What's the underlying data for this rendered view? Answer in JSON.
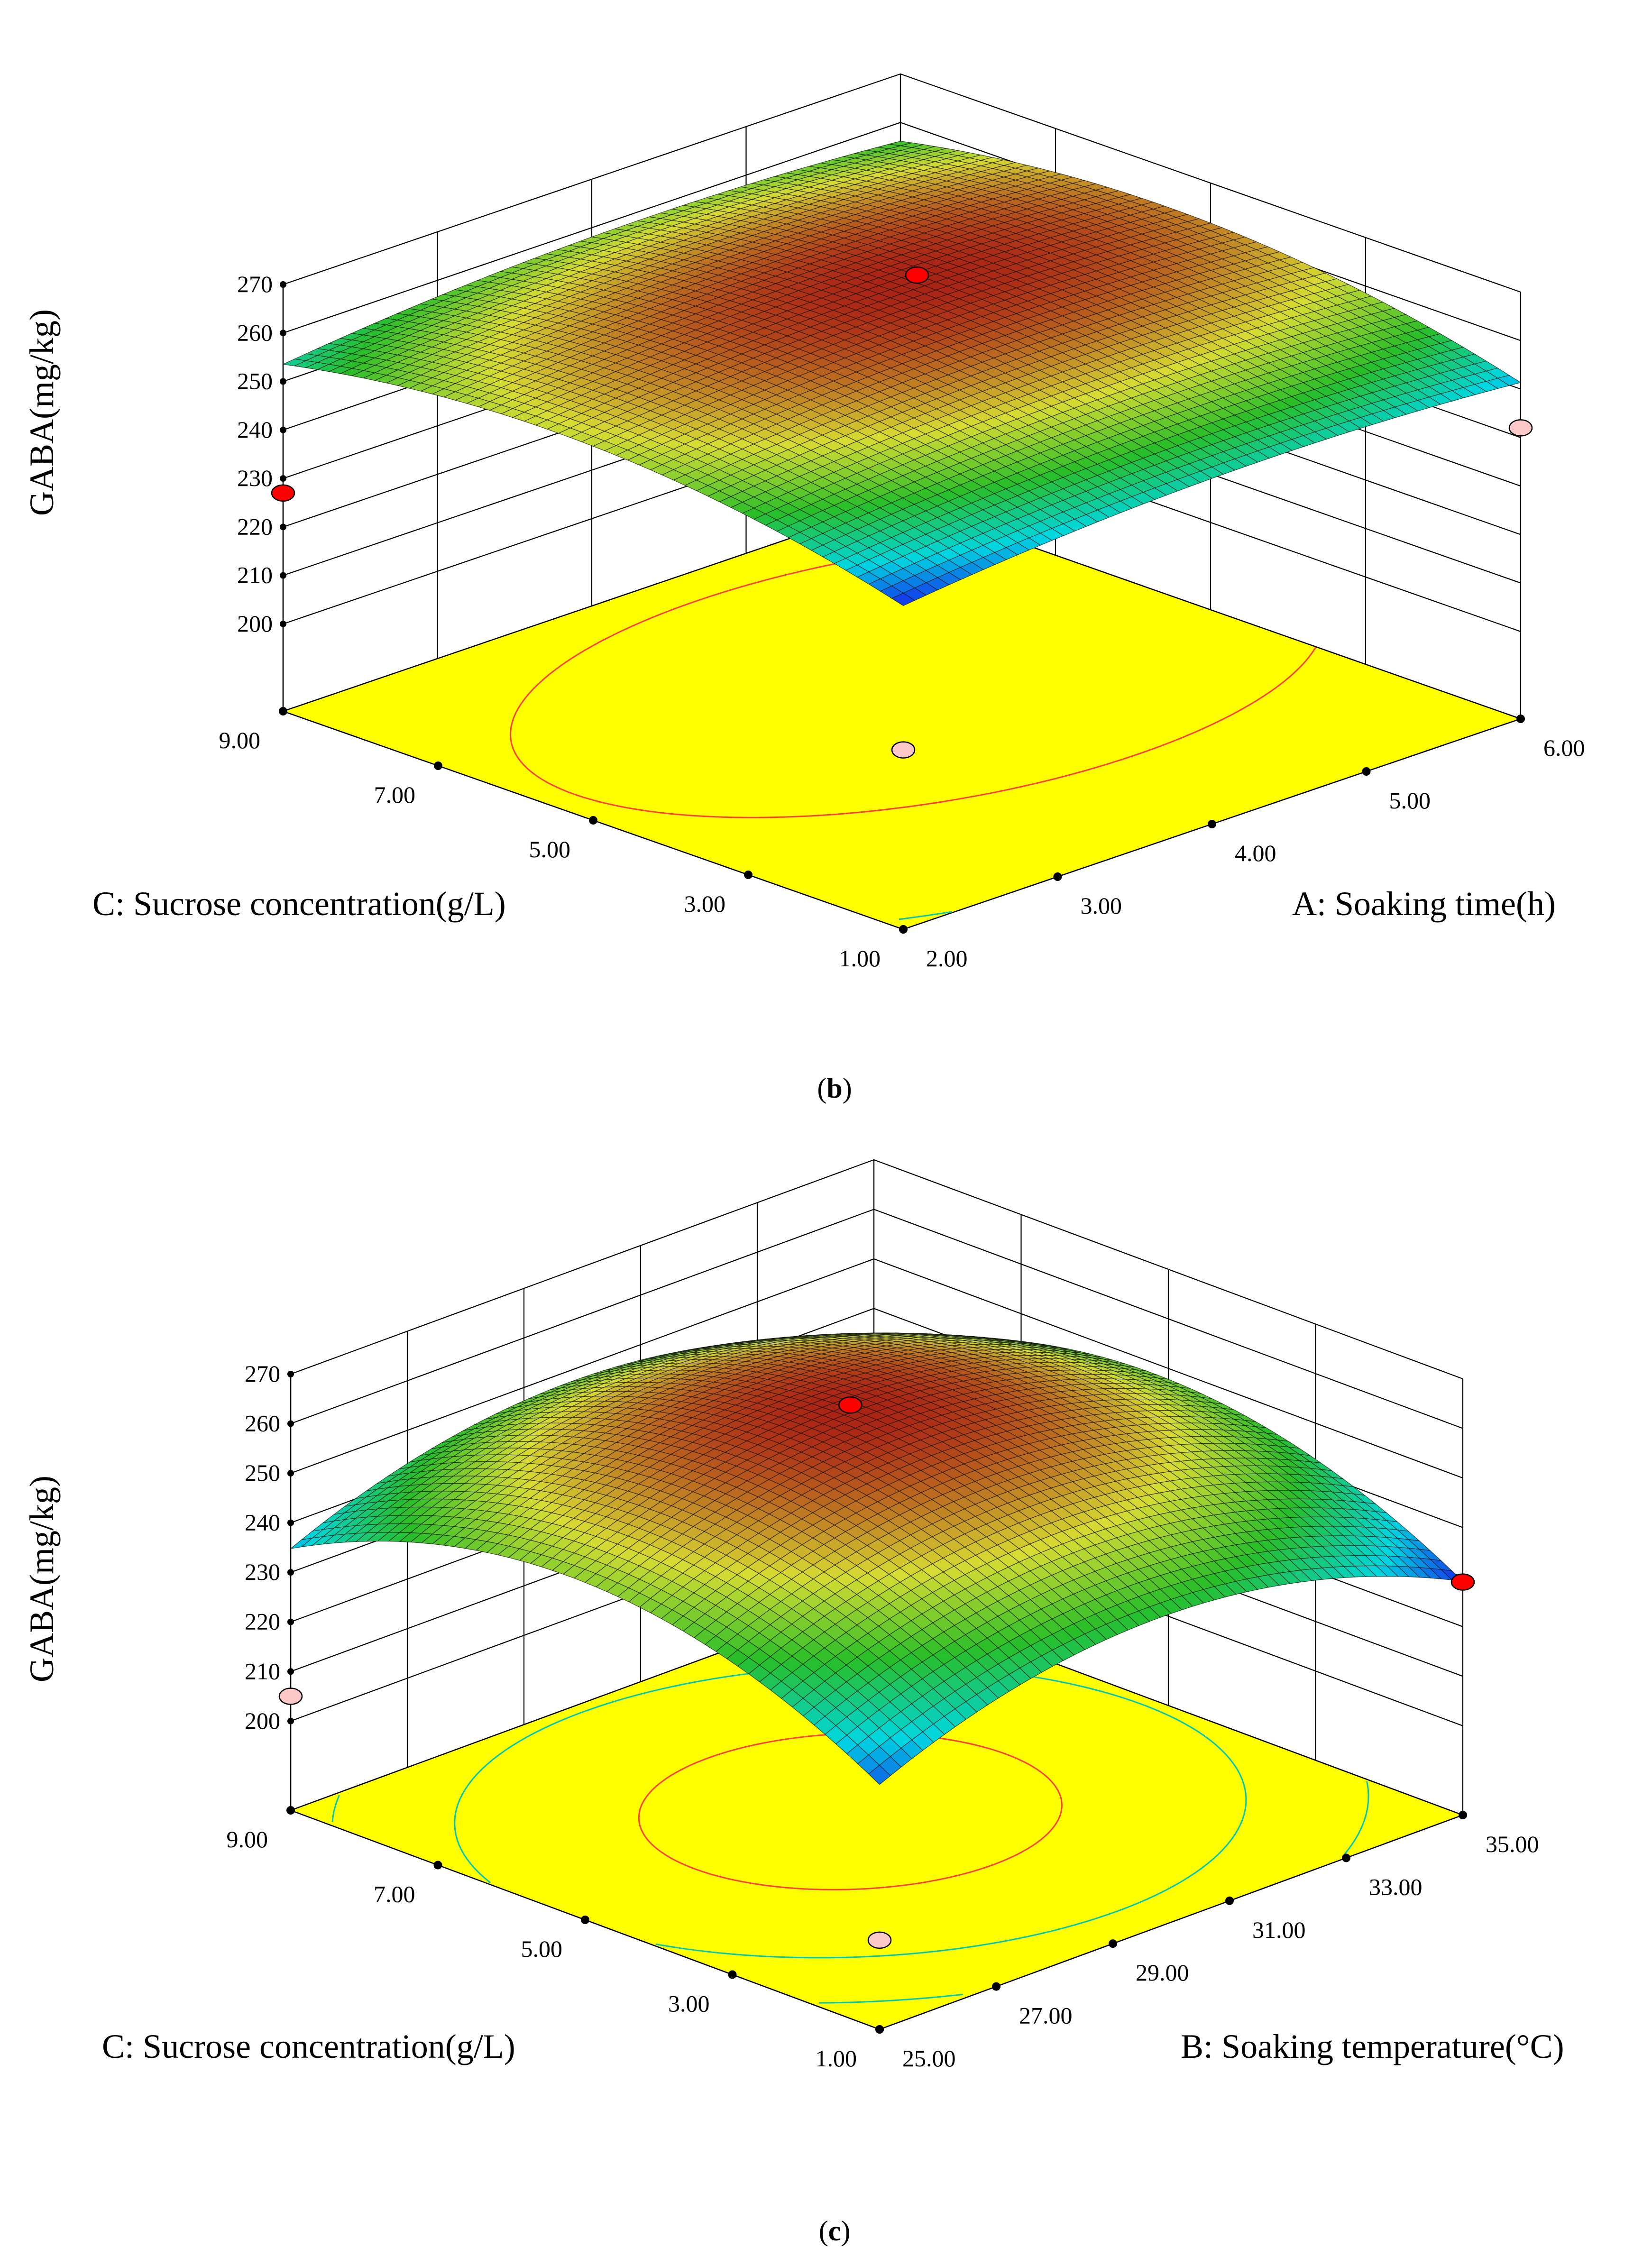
{
  "figure": {
    "colors": {
      "floor": "#ffff00",
      "contour_outer": "#00c8b4",
      "contour_inner": "#ff4040",
      "point_red": "#ff0000",
      "point_pink": "#ffc8c8",
      "mesh": "#000000"
    }
  },
  "chart_data": [
    {
      "type": "surface3d",
      "panel_label": "b",
      "zlabel": "GABA(mg/kg)",
      "xlabel": "A: Soaking time(h)",
      "ylabel": "C: Sucrose concentration(g/L)",
      "x_ticks": [
        "2.00",
        "3.00",
        "4.00",
        "5.00",
        "6.00"
      ],
      "y_ticks": [
        "1.00",
        "3.00",
        "5.00",
        "7.00",
        "9.00"
      ],
      "z_ticks": [
        "200",
        "210",
        "220",
        "230",
        "240",
        "250",
        "260",
        "270"
      ],
      "xlim": [
        2,
        6
      ],
      "ylim": [
        1,
        9
      ],
      "zlim": [
        200,
        270
      ],
      "model": {
        "max": 264,
        "center": [
          4.4,
          5.6
        ],
        "ax": 0.8125,
        "ay": 0.5,
        "axy": 0
      },
      "points": [
        {
          "x": 4.4,
          "y": 5.6,
          "z": 265,
          "kind": "red"
        },
        {
          "x": 2,
          "y": 9,
          "z": 227,
          "kind": "red"
        },
        {
          "x": 6,
          "y": 1,
          "z": 242,
          "kind": "pink"
        },
        {
          "x": 2,
          "y": 1,
          "z": 219,
          "kind": "pink"
        }
      ]
    },
    {
      "type": "surface3d",
      "panel_label": "c",
      "zlabel": "GABA(mg/kg)",
      "xlabel": "B: Soaking temperature(°C)",
      "ylabel": "C: Sucrose concentration(g/L)",
      "x_ticks": [
        "25.00",
        "27.00",
        "29.00",
        "31.00",
        "33.00",
        "35.00"
      ],
      "y_ticks": [
        "1.00",
        "3.00",
        "5.00",
        "7.00",
        "9.00"
      ],
      "z_ticks": [
        "200",
        "210",
        "220",
        "230",
        "240",
        "250",
        "260",
        "270"
      ],
      "xlim": [
        25,
        35
      ],
      "ylim": [
        1,
        9
      ],
      "zlim": [
        200,
        270
      ],
      "model": {
        "max": 263,
        "center": [
          29.8,
          5.2
        ],
        "ax": 0.56,
        "ay": 1.06,
        "axy": 0
      },
      "points": [
        {
          "x": 29.8,
          "y": 5.2,
          "z": 264,
          "kind": "red"
        },
        {
          "x": 25,
          "y": 9,
          "z": 205,
          "kind": "pink"
        },
        {
          "x": 35,
          "y": 1,
          "z": 229,
          "kind": "red"
        },
        {
          "x": 25,
          "y": 1,
          "z": 200,
          "kind": "pink"
        }
      ]
    }
  ]
}
